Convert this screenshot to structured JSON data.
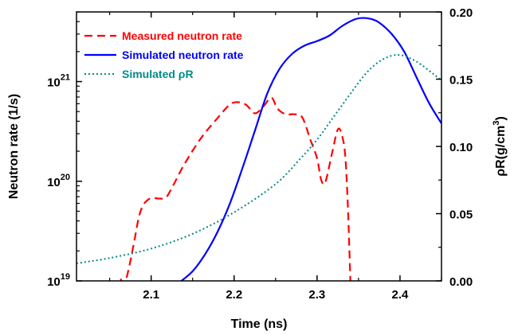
{
  "chart_data": {
    "type": "line",
    "xlabel": "Time (ns)",
    "ylabel_left": "Neutron rate (1/s)",
    "ylabel_right": "ρR(g/cm",
    "ylabel_right_sup": "3",
    "ylabel_right_close": ")",
    "xlim": [
      2.01,
      2.45
    ],
    "ylim_left": [
      1e+19,
      5e+21
    ],
    "yscale_left": "log",
    "ylim_right": [
      0.0,
      0.2
    ],
    "x_ticks": [
      2.1,
      2.2,
      2.3,
      2.4
    ],
    "x_tick_labels": [
      "2.1",
      "2.2",
      "2.3",
      "2.4"
    ],
    "y_left_ticks": [
      {
        "value": 1e+19,
        "base": "10",
        "exp": "19"
      },
      {
        "value": 1e+20,
        "base": "10",
        "exp": "20"
      },
      {
        "value": 1e+21,
        "base": "10",
        "exp": "21"
      }
    ],
    "y_right_ticks": [
      0.0,
      0.05,
      0.1,
      0.15,
      0.2
    ],
    "y_right_tick_labels": [
      "0.00",
      "0.05",
      "0.10",
      "0.15",
      "0.20"
    ],
    "legend_position": "top-left",
    "series": [
      {
        "name": "Measured neutron rate",
        "color": "#ff0000",
        "style": "dashed",
        "axis": "left",
        "x": [
          2.063,
          2.068,
          2.074,
          2.08,
          2.085,
          2.09,
          2.096,
          2.101,
          2.11,
          2.118,
          2.126,
          2.14,
          2.16,
          2.18,
          2.195,
          2.205,
          2.215,
          2.225,
          2.235,
          2.245,
          2.252,
          2.262,
          2.272,
          2.282,
          2.292,
          2.3,
          2.305,
          2.31,
          2.318,
          2.325,
          2.33,
          2.334,
          2.337,
          2.339,
          2.341
        ],
        "y": [
          1.05e+19,
          9.5e+18,
          1.45e+19,
          2.6e+19,
          4.3e+19,
          5.7e+19,
          6.5e+19,
          6.8e+19,
          6.7e+19,
          6.9e+19,
          8.9e+19,
          1.48e+20,
          2.7e+20,
          4.3e+20,
          5.9e+20,
          6.2e+20,
          5.8e+20,
          4.8e+20,
          5.6e+20,
          6.9e+20,
          5.4e+20,
          4.7e+20,
          4.7e+20,
          4.4e+20,
          2.6e+20,
          1.7e+20,
          1.03e+20,
          9.8e+19,
          1.9e+20,
          3.3e+20,
          2.9e+20,
          1.8e+20,
          6e+19,
          2e+19,
          6e+18
        ]
      },
      {
        "name": "Simulated neutron rate",
        "color": "#0000ff",
        "style": "solid",
        "axis": "left",
        "x": [
          2.133,
          2.15,
          2.165,
          2.18,
          2.195,
          2.21,
          2.225,
          2.24,
          2.255,
          2.27,
          2.285,
          2.3,
          2.315,
          2.33,
          2.345,
          2.355,
          2.365,
          2.375,
          2.39,
          2.405,
          2.42,
          2.435,
          2.45
        ],
        "y": [
          9.5e+18,
          1.25e+19,
          1.85e+19,
          3.1e+19,
          6e+19,
          1.35e+20,
          3.2e+20,
          7.6e+20,
          1.35e+21,
          1.9e+21,
          2.3e+21,
          2.55e+21,
          2.9e+21,
          3.6e+21,
          4.2e+21,
          4.35e+21,
          4.25e+21,
          3.9e+21,
          3e+21,
          2e+21,
          1.1e+21,
          6.1e+20,
          3.8e+20
        ]
      },
      {
        "name": "Simulated ρR",
        "color": "#008b8b",
        "style": "dotted",
        "axis": "right",
        "x": [
          2.01,
          2.05,
          2.1,
          2.15,
          2.2,
          2.25,
          2.28,
          2.3,
          2.32,
          2.34,
          2.36,
          2.38,
          2.4,
          2.42,
          2.44,
          2.45
        ],
        "y": [
          0.013,
          0.017,
          0.024,
          0.035,
          0.051,
          0.072,
          0.091,
          0.105,
          0.122,
          0.139,
          0.155,
          0.165,
          0.168,
          0.163,
          0.154,
          0.149
        ]
      }
    ]
  }
}
